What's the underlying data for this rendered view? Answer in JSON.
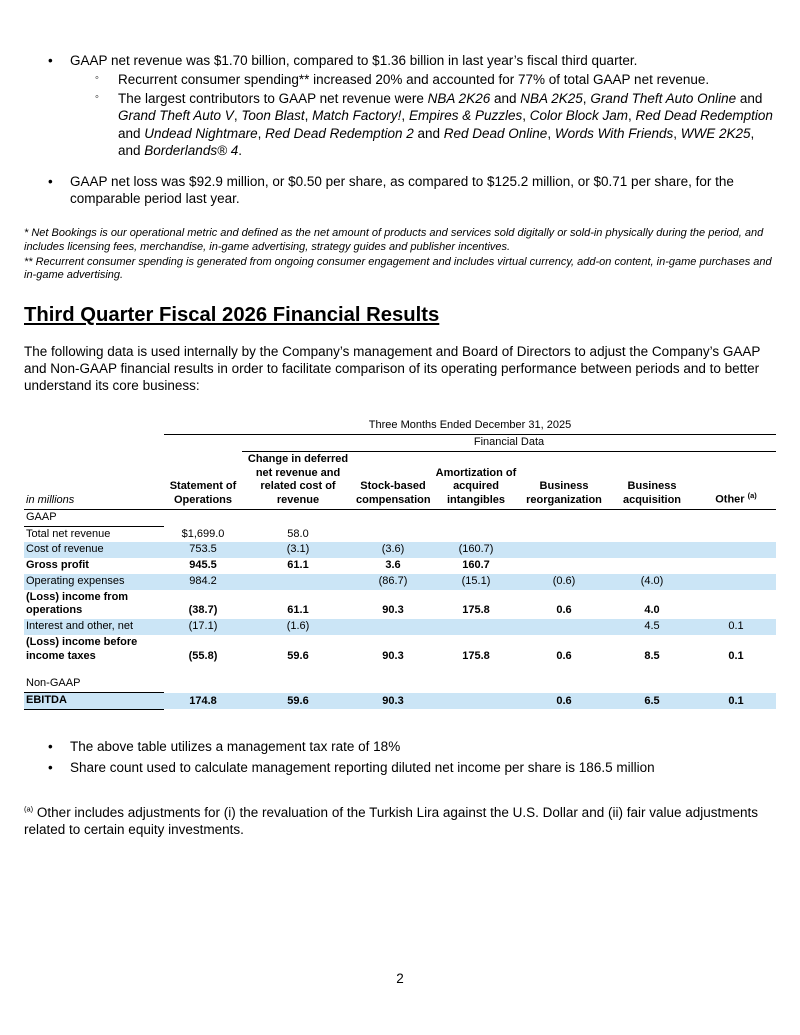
{
  "page": {
    "number": "2"
  },
  "colors": {
    "row_shade": "#cbe5f6",
    "text": "#000000"
  },
  "highlights": [
    {
      "marker": "•",
      "segments": [
        {
          "t": "GAAP net revenue was $1.70 billion, compared to $1.36 billion in last year’s fiscal third quarter."
        }
      ],
      "sub_items": [
        {
          "marker": "◦",
          "segments": [
            {
              "t": "Recurrent consumer spending** increased 20% and accounted for 77% of total GAAP net revenue."
            }
          ]
        },
        {
          "marker": "◦",
          "segments": [
            {
              "t": "The largest contributors to GAAP net revenue were "
            },
            {
              "t": "NBA 2K26",
              "i": true
            },
            {
              "t": " and "
            },
            {
              "t": "NBA 2K25",
              "i": true
            },
            {
              "t": ", "
            },
            {
              "t": "Grand Theft Auto Online",
              "i": true
            },
            {
              "t": " and "
            },
            {
              "t": "Grand Theft Auto V",
              "i": true
            },
            {
              "t": ", "
            },
            {
              "t": "Toon Blast",
              "i": true
            },
            {
              "t": ", "
            },
            {
              "t": "Match Factory!",
              "i": true
            },
            {
              "t": ", "
            },
            {
              "t": "Empires & Puzzles",
              "i": true
            },
            {
              "t": ", "
            },
            {
              "t": "Color Block Jam",
              "i": true
            },
            {
              "t": ", "
            },
            {
              "t": "Red Dead Redemption",
              "i": true
            },
            {
              "t": " and "
            },
            {
              "t": "Undead Nightmare",
              "i": true
            },
            {
              "t": ", "
            },
            {
              "t": "Red Dead Redemption 2",
              "i": true
            },
            {
              "t": " and "
            },
            {
              "t": "Red Dead Online",
              "i": true
            },
            {
              "t": ", "
            },
            {
              "t": "Words With Friends",
              "i": true
            },
            {
              "t": ", "
            },
            {
              "t": "WWE 2K25",
              "i": true
            },
            {
              "t": ", and "
            },
            {
              "t": "Borderlands® 4",
              "i": true
            },
            {
              "t": "."
            }
          ]
        }
      ]
    },
    {
      "marker": "•",
      "segments": [
        {
          "t": "GAAP net loss was $92.9 million, or $0.50 per share, as compared to $125.2 million, or $0.71 per share, for the comparable period last year."
        }
      ],
      "sub_items": []
    }
  ],
  "footnotes": [
    "*  Net Bookings is our operational metric and defined as the net amount of products and services sold digitally or sold-in physically during the period, and includes licensing fees, merchandise, in-game advertising, strategy guides and publisher incentives.",
    "** Recurrent consumer spending is generated from ongoing consumer engagement and includes virtual currency, add-on content, in-game purchases and in-game advertising."
  ],
  "section_heading": "Third Quarter Fiscal 2026 Financial Results",
  "intro_paragraph": "The following data is used internally by the Company’s management and Board of Directors to adjust the Company’s GAAP and Non-GAAP financial results in order to facilitate comparison of its operating performance between periods and to better understand its core business:",
  "table": {
    "period_header": "Three Months Ended December 31, 2025",
    "group_header": "Financial Data",
    "row_label_header": "in millions",
    "columns": [
      "Statement of Operations",
      "Change in deferred net revenue and related cost of revenue",
      "Stock-based compensation",
      "Amortization of acquired intangibles",
      "Business reorganization",
      "Business acquisition",
      "Other"
    ],
    "other_superscript": "(a)",
    "rows": [
      {
        "label": "GAAP",
        "values": [
          "",
          "",
          "",
          "",
          "",
          "",
          ""
        ]
      },
      {
        "label": "Total net revenue",
        "values": [
          "$1,699.0",
          "58.0",
          "",
          "",
          "",
          "",
          ""
        ]
      },
      {
        "label": "Cost of revenue",
        "values": [
          "753.5",
          "(3.1)",
          "(3.6)",
          "(160.7)",
          "",
          "",
          ""
        ]
      },
      {
        "label": "Gross profit",
        "values": [
          "945.5",
          "61.1",
          "3.6",
          "160.7",
          "",
          "",
          ""
        ]
      },
      {
        "label": "Operating expenses",
        "values": [
          "984.2",
          "",
          "(86.7)",
          "(15.1)",
          "(0.6)",
          "(4.0)",
          ""
        ]
      },
      {
        "label": "(Loss) income from operations",
        "values": [
          "(38.7)",
          "61.1",
          "90.3",
          "175.8",
          "0.6",
          "4.0",
          ""
        ]
      },
      {
        "label": "Interest and other, net",
        "values": [
          "(17.1)",
          "(1.6)",
          "",
          "",
          "",
          "4.5",
          "0.1"
        ]
      },
      {
        "label": "(Loss) income before income taxes",
        "values": [
          "(55.8)",
          "59.6",
          "90.3",
          "175.8",
          "0.6",
          "8.5",
          "0.1"
        ]
      },
      {
        "label": "Non-GAAP",
        "values": [
          "",
          "",
          "",
          "",
          "",
          "",
          ""
        ]
      },
      {
        "label": "EBITDA",
        "values": [
          "174.8",
          "59.6",
          "90.3",
          "",
          "0.6",
          "6.5",
          "0.1"
        ]
      }
    ]
  },
  "notes": {
    "marker": "•",
    "items": [
      "The above table utilizes a management tax rate of 18%",
      "Share count used to calculate management reporting diluted net income per share is 186.5 million"
    ]
  },
  "footnote_a": {
    "sup": "(a)",
    "text": " Other includes adjustments for (i) the revaluation of the Turkish Lira against the U.S. Dollar and (ii) fair value adjustments related to certain equity investments."
  }
}
